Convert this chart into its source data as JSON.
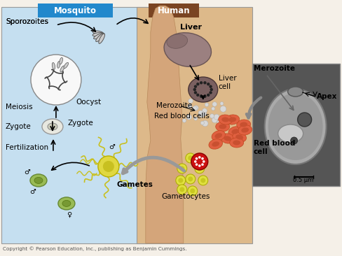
{
  "bg_color": "#f5f0e8",
  "mosquito_bg": "#c5dff0",
  "human_bg": "#ddb98a",
  "mosquito_label": "Mosquito",
  "mosquito_label_bg": "#2288cc",
  "human_label": "Human",
  "human_label_bg": "#7a4422",
  "micro_bg": "#cccccc",
  "micro_cell_bg": "#aaaaaa",
  "labels": {
    "sporozoites": "Sporozoites",
    "oocyst": "Oocyst",
    "meiosis": "Meiosis",
    "zygote": "Zygote",
    "fertilization": "Fertilization",
    "gametes": "Gametes",
    "liver": "Liver",
    "liver_cell": "Liver\ncell",
    "merozoite_left": "Merozoite",
    "red_blood_cells": "Red blood cells",
    "gametocytes": "Gametocytes",
    "merozoite_right": "Merozoite",
    "red_blood_cell_right": "Red blood\ncell",
    "apex": "Apex",
    "scale": "0.5 μm",
    "copyright": "Copyright © Pearson Education, Inc., publishing as Benjamin Cummings."
  },
  "figsize": [
    4.88,
    3.66
  ],
  "dpi": 100
}
